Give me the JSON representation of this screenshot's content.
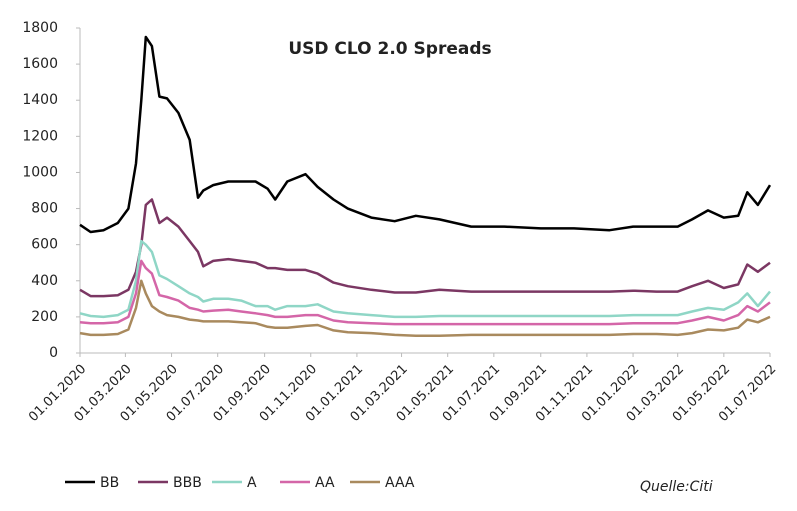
{
  "chart_data": {
    "type": "line",
    "title": "USD CLO 2.0 Spreads",
    "note": "Quelle:Citi",
    "x": [
      "2020-01-01",
      "2020-01-15",
      "2020-02-01",
      "2020-02-20",
      "2020-03-05",
      "2020-03-15",
      "2020-03-22",
      "2020-03-28",
      "2020-04-05",
      "2020-04-15",
      "2020-04-25",
      "2020-05-10",
      "2020-05-25",
      "2020-06-05",
      "2020-06-12",
      "2020-06-25",
      "2020-07-15",
      "2020-08-01",
      "2020-08-20",
      "2020-09-05",
      "2020-09-15",
      "2020-10-01",
      "2020-10-25",
      "2020-11-10",
      "2020-12-01",
      "2020-12-20",
      "2021-01-20",
      "2021-02-20",
      "2021-03-20",
      "2021-04-20",
      "2021-06-01",
      "2021-07-15",
      "2021-09-01",
      "2021-10-15",
      "2021-12-01",
      "2022-01-01",
      "2022-02-01",
      "2022-03-01",
      "2022-03-20",
      "2022-04-10",
      "2022-05-01",
      "2022-05-20",
      "2022-06-01",
      "2022-06-15",
      "2022-07-01"
    ],
    "series": [
      {
        "name": "BB",
        "color": "#000000",
        "values": [
          710,
          670,
          680,
          720,
          800,
          1050,
          1400,
          1750,
          1700,
          1420,
          1410,
          1330,
          1180,
          860,
          900,
          930,
          950,
          950,
          950,
          910,
          850,
          950,
          990,
          920,
          850,
          800,
          750,
          730,
          760,
          740,
          700,
          700,
          690,
          690,
          680,
          700,
          700,
          700,
          740,
          790,
          750,
          760,
          890,
          820,
          930
        ]
      },
      {
        "name": "BBB",
        "color": "#7b3763",
        "values": [
          350,
          315,
          315,
          320,
          350,
          450,
          600,
          820,
          850,
          720,
          750,
          700,
          620,
          560,
          480,
          510,
          520,
          510,
          500,
          470,
          470,
          460,
          460,
          440,
          390,
          370,
          350,
          335,
          335,
          350,
          340,
          340,
          340,
          340,
          340,
          345,
          340,
          340,
          370,
          400,
          360,
          380,
          490,
          450,
          500
        ]
      },
      {
        "name": "A",
        "color": "#8fd6c6",
        "values": [
          220,
          205,
          200,
          210,
          240,
          400,
          620,
          600,
          560,
          430,
          410,
          370,
          330,
          310,
          285,
          300,
          300,
          290,
          260,
          260,
          240,
          260,
          260,
          270,
          230,
          220,
          210,
          200,
          200,
          205,
          205,
          205,
          205,
          205,
          205,
          210,
          210,
          210,
          230,
          250,
          240,
          280,
          330,
          260,
          340
        ]
      },
      {
        "name": "AA",
        "color": "#d466a8",
        "values": [
          170,
          165,
          165,
          170,
          200,
          330,
          510,
          470,
          440,
          320,
          310,
          290,
          250,
          240,
          230,
          235,
          240,
          230,
          220,
          210,
          200,
          200,
          210,
          210,
          180,
          170,
          165,
          160,
          160,
          160,
          160,
          160,
          160,
          160,
          160,
          165,
          165,
          165,
          180,
          200,
          180,
          210,
          260,
          230,
          280
        ]
      },
      {
        "name": "AAA",
        "color": "#a98a5e",
        "values": [
          110,
          100,
          100,
          105,
          130,
          250,
          400,
          330,
          260,
          230,
          210,
          200,
          185,
          180,
          175,
          175,
          175,
          170,
          165,
          145,
          140,
          140,
          150,
          155,
          125,
          115,
          110,
          100,
          95,
          95,
          100,
          100,
          100,
          100,
          100,
          105,
          105,
          100,
          110,
          130,
          125,
          140,
          185,
          170,
          200
        ]
      }
    ],
    "xlim": [
      "2020-01-01",
      "2022-07-01"
    ],
    "xticks": [
      {
        "value": "2020-01-01",
        "label": "01.01.2020"
      },
      {
        "value": "2020-03-01",
        "label": "01.03.2020"
      },
      {
        "value": "2020-05-01",
        "label": "01.05.2020"
      },
      {
        "value": "2020-07-01",
        "label": "01.07.2020"
      },
      {
        "value": "2020-09-01",
        "label": "01.09.2020"
      },
      {
        "value": "2020-11-01",
        "label": "01.11.2020"
      },
      {
        "value": "2021-01-01",
        "label": "01.01.2021"
      },
      {
        "value": "2021-03-01",
        "label": "01.03.2021"
      },
      {
        "value": "2021-05-01",
        "label": "01.05.2021"
      },
      {
        "value": "2021-07-01",
        "label": "01.07.2021"
      },
      {
        "value": "2021-09-01",
        "label": "01.09.2021"
      },
      {
        "value": "2021-11-01",
        "label": "01.11.2021"
      },
      {
        "value": "2022-01-01",
        "label": "01.01.2022"
      },
      {
        "value": "2022-03-01",
        "label": "01.03.2022"
      },
      {
        "value": "2022-05-01",
        "label": "01.05.2022"
      },
      {
        "value": "2022-07-01",
        "label": "01.07.2022"
      }
    ],
    "ylim": [
      0,
      1800
    ],
    "yticks": [
      0,
      200,
      400,
      600,
      800,
      1000,
      1200,
      1400,
      1600,
      1800
    ],
    "grid": false,
    "legend": "bottom"
  }
}
